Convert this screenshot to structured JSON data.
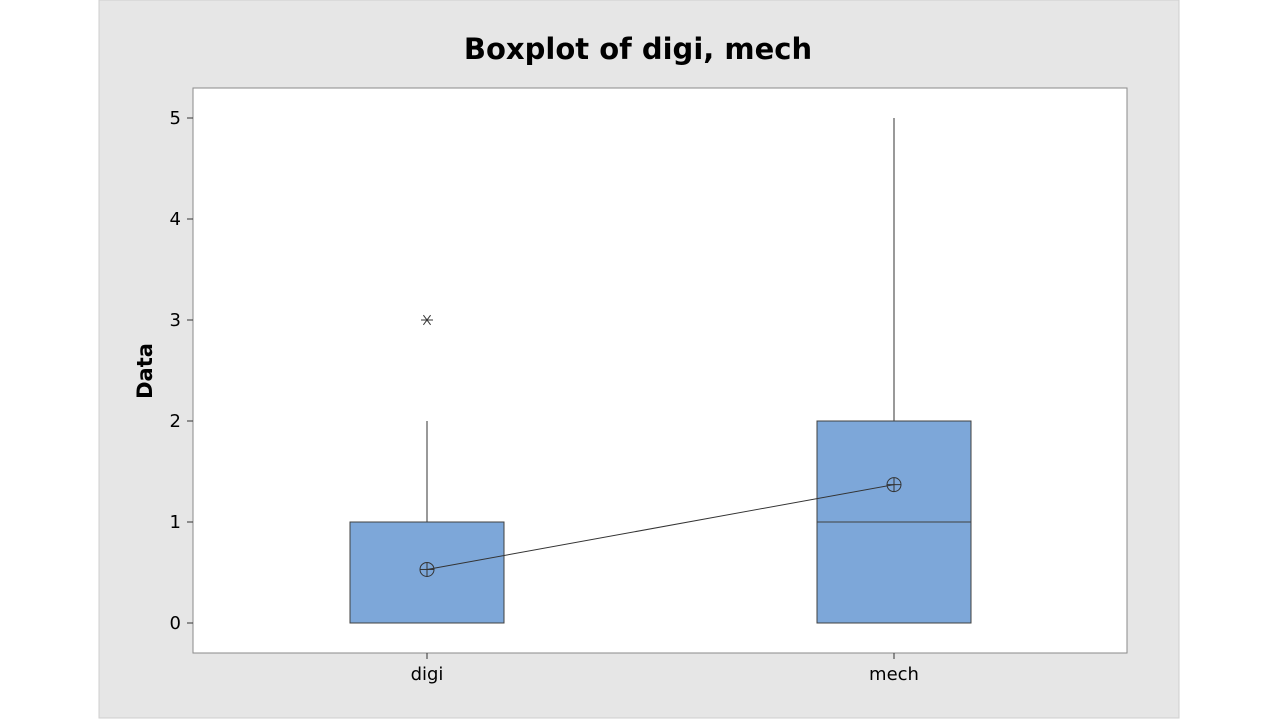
{
  "chart_data": {
    "type": "boxplot",
    "title": "Boxplot of digi, mech",
    "xlabel": "",
    "ylabel": "Data",
    "ylim": [
      -0.3,
      5.3
    ],
    "yticks": [
      0,
      1,
      2,
      3,
      4,
      5
    ],
    "categories": [
      "digi",
      "mech"
    ],
    "boxes": [
      {
        "category": "digi",
        "whisker_low": 0,
        "q1": 0,
        "median": 0,
        "q3": 1,
        "whisker_high": 2,
        "mean": 0.53,
        "outliers": [
          3
        ]
      },
      {
        "category": "mech",
        "whisker_low": 0,
        "q1": 0,
        "median": 1,
        "q3": 2,
        "whisker_high": 5,
        "mean": 1.37,
        "outliers": []
      }
    ],
    "mean_connect_line": true,
    "grid": false,
    "colors": {
      "figure_background": "#e6e6e6",
      "plot_background": "#ffffff",
      "box_fill": "#7da7d9",
      "box_edge": "#404040",
      "line": "#333333"
    }
  }
}
